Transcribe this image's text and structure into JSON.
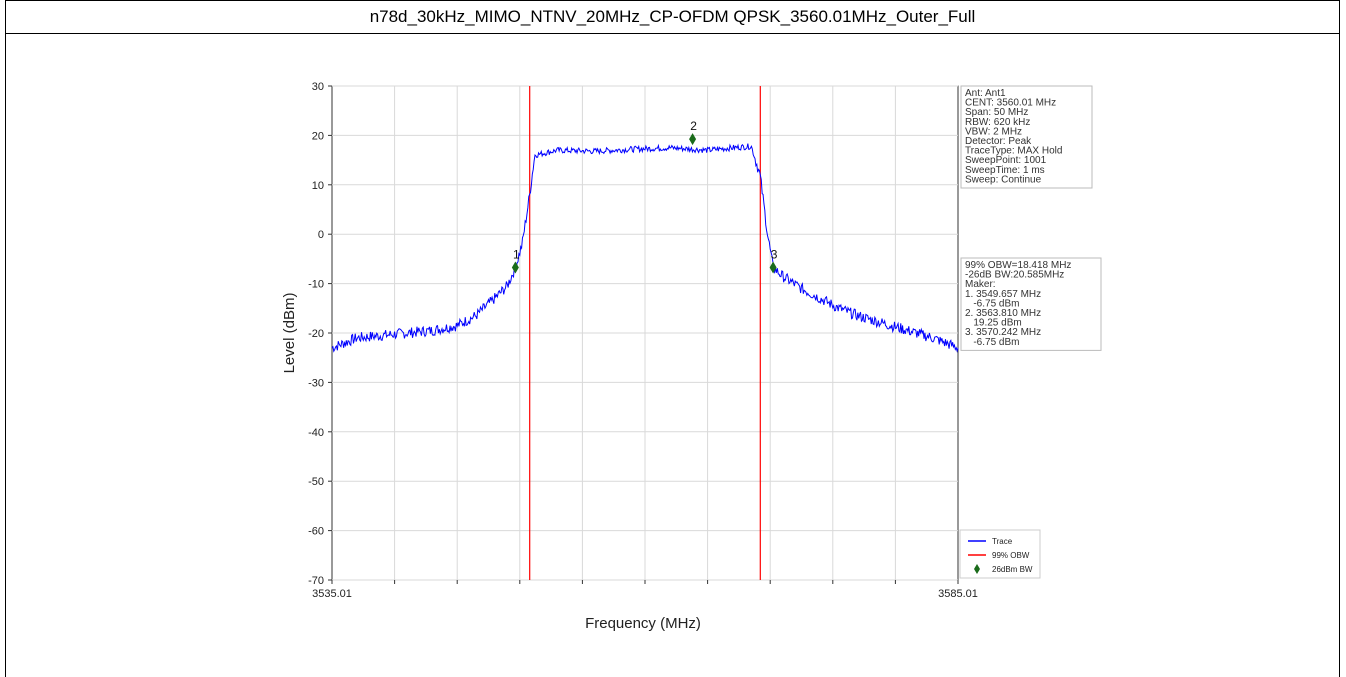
{
  "header": {
    "title": "n78d_30kHz_MIMO_NTNV_20MHz_CP-OFDM QPSK_3560.01MHz_Outer_Full"
  },
  "chart_data": {
    "type": "line",
    "xlabel": "Frequency (MHz)",
    "ylabel": "Level (dBm)",
    "xlim": [
      3535.01,
      3585.01
    ],
    "ylim": [
      -70,
      30
    ],
    "x_tick_labels": [
      {
        "x": 3535.01,
        "label": "3535.01"
      },
      {
        "x": 3585.01,
        "label": "3585.01"
      }
    ],
    "y_ticks": [
      30,
      20,
      10,
      0,
      -10,
      -20,
      -30,
      -40,
      -50,
      -60,
      -70
    ],
    "grid": true,
    "series": [
      {
        "name": "Trace",
        "color": "#0000ff",
        "x": [
          3535.01,
          3537.0,
          3539.0,
          3541.0,
          3543.0,
          3545.0,
          3546.5,
          3548.0,
          3549.0,
          3549.657,
          3550.2,
          3550.8,
          3551.2,
          3553.0,
          3556.0,
          3559.0,
          3562.0,
          3565.0,
          3567.0,
          3568.5,
          3569.2,
          3569.8,
          3570.242,
          3571.0,
          3572.5,
          3574.0,
          3575.5,
          3577.0,
          3579.0,
          3581.0,
          3583.0,
          3585.01
        ],
        "y": [
          -23,
          -21,
          -20.5,
          -20,
          -19.5,
          -18.5,
          -16.5,
          -13,
          -10.5,
          -6.75,
          -2,
          8,
          16,
          17,
          16.8,
          17.2,
          17.5,
          17,
          17.5,
          17.8,
          12,
          0,
          -6.75,
          -8.5,
          -11,
          -13,
          -15,
          -16.5,
          -18,
          -19.5,
          -21,
          -23
        ]
      }
    ],
    "obw_lines": {
      "name": "99% OBW",
      "color": "#ff0000",
      "x": [
        3550.801,
        3569.219
      ]
    },
    "markers": {
      "name": "26dBm BW",
      "color": "#1a6b1a",
      "points": [
        {
          "id": "1",
          "x": 3549.657,
          "y": -6.75
        },
        {
          "id": "2",
          "x": 3563.81,
          "y": 19.25
        },
        {
          "id": "3",
          "x": 3570.242,
          "y": -6.75
        }
      ]
    },
    "legend": {
      "position": "bottom-right",
      "entries": [
        "Trace",
        "99% OBW",
        "26dBm BW"
      ]
    },
    "info_box_1": [
      "Ant: Ant1",
      "CENT: 3560.01 MHz",
      "Span: 50 MHz",
      "RBW: 620 kHz",
      "VBW: 2 MHz",
      "Detector: Peak",
      "TraceType: MAX Hold",
      "SweepPoint: 1001",
      "SweepTime: 1 ms",
      "Sweep: Continue"
    ],
    "info_box_2": [
      "99% OBW=18.418 MHz",
      "-26dB BW:20.585MHz",
      "Maker:",
      "1. 3549.657 MHz",
      "   -6.75 dBm",
      "2. 3563.810 MHz",
      "   19.25 dBm",
      "3. 3570.242 MHz",
      "   -6.75 dBm"
    ]
  }
}
